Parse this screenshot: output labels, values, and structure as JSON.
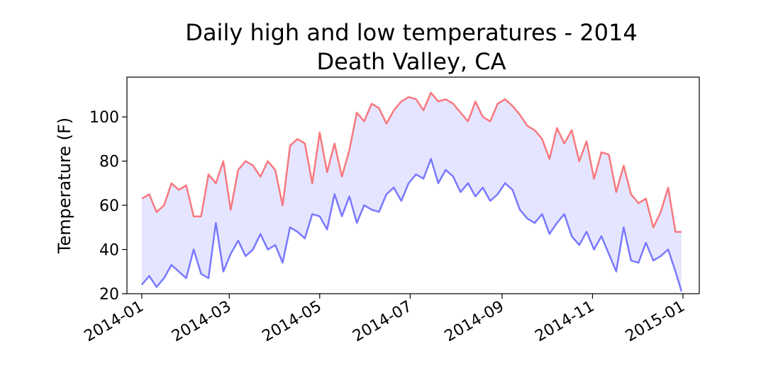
{
  "chart_data": {
    "type": "line",
    "title": "Daily high and low temperatures - 2014\nDeath Valley, CA",
    "title_lines": [
      "Daily high and low temperatures - 2014",
      "Death Valley, CA"
    ],
    "xlabel": "",
    "ylabel": "Temperature (F)",
    "x_range": [
      "2013-12-22",
      "2015-01-12"
    ],
    "ylim": [
      20,
      118
    ],
    "yticks": [
      20,
      40,
      60,
      80,
      100
    ],
    "xticks": [
      "2014-01",
      "2014-03",
      "2014-05",
      "2014-07",
      "2014-09",
      "2014-11",
      "2015-01"
    ],
    "xtick_dates": [
      "2014-01-01",
      "2014-03-01",
      "2014-05-01",
      "2014-07-01",
      "2014-09-01",
      "2014-11-01",
      "2015-01-01"
    ],
    "grid": false,
    "fill_between": {
      "color": "#0000ff",
      "alpha": 0.1
    },
    "x": [
      "2014-01-01",
      "2014-01-06",
      "2014-01-11",
      "2014-01-16",
      "2014-01-21",
      "2014-01-26",
      "2014-01-31",
      "2014-02-05",
      "2014-02-10",
      "2014-02-15",
      "2014-02-20",
      "2014-02-25",
      "2014-03-02",
      "2014-03-07",
      "2014-03-12",
      "2014-03-17",
      "2014-03-22",
      "2014-03-27",
      "2014-04-01",
      "2014-04-06",
      "2014-04-11",
      "2014-04-16",
      "2014-04-21",
      "2014-04-26",
      "2014-05-01",
      "2014-05-06",
      "2014-05-11",
      "2014-05-16",
      "2014-05-21",
      "2014-05-26",
      "2014-05-31",
      "2014-06-05",
      "2014-06-10",
      "2014-06-15",
      "2014-06-20",
      "2014-06-25",
      "2014-06-30",
      "2014-07-05",
      "2014-07-10",
      "2014-07-15",
      "2014-07-20",
      "2014-07-25",
      "2014-07-30",
      "2014-08-04",
      "2014-08-09",
      "2014-08-14",
      "2014-08-19",
      "2014-08-24",
      "2014-08-29",
      "2014-09-03",
      "2014-09-08",
      "2014-09-13",
      "2014-09-18",
      "2014-09-23",
      "2014-09-28",
      "2014-10-03",
      "2014-10-08",
      "2014-10-13",
      "2014-10-18",
      "2014-10-23",
      "2014-10-28",
      "2014-11-02",
      "2014-11-07",
      "2014-11-12",
      "2014-11-17",
      "2014-11-22",
      "2014-11-27",
      "2014-12-02",
      "2014-12-07",
      "2014-12-12",
      "2014-12-17",
      "2014-12-22",
      "2014-12-27",
      "2014-12-31"
    ],
    "series": [
      {
        "color": "#ff0000",
        "alpha": 0.5,
        "values": [
          63,
          65,
          57,
          60,
          70,
          67,
          69,
          55,
          55,
          74,
          70,
          80,
          58,
          76,
          80,
          78,
          73,
          80,
          76,
          60,
          87,
          90,
          88,
          70,
          93,
          75,
          88,
          73,
          85,
          102,
          98,
          106,
          104,
          97,
          103,
          107,
          109,
          108,
          103,
          111,
          107,
          108,
          106,
          102,
          98,
          107,
          100,
          98,
          106,
          108,
          105,
          101,
          96,
          94,
          90,
          81,
          95,
          88,
          94,
          80,
          89,
          72,
          84,
          83,
          66,
          78,
          65,
          61,
          63,
          50,
          57,
          68,
          48,
          48
        ]
      },
      {
        "color": "#0000ff",
        "alpha": 0.5,
        "values": [
          24,
          28,
          23,
          27,
          33,
          30,
          27,
          40,
          29,
          27,
          52,
          30,
          38,
          44,
          37,
          40,
          47,
          40,
          42,
          34,
          50,
          48,
          45,
          56,
          55,
          49,
          65,
          55,
          64,
          52,
          60,
          58,
          57,
          65,
          68,
          62,
          70,
          74,
          72,
          81,
          70,
          76,
          73,
          66,
          70,
          64,
          68,
          62,
          65,
          70,
          67,
          58,
          54,
          52,
          56,
          47,
          52,
          56,
          46,
          42,
          48,
          40,
          46,
          38,
          30,
          50,
          35,
          34,
          43,
          35,
          37,
          40,
          30,
          21
        ]
      }
    ]
  }
}
